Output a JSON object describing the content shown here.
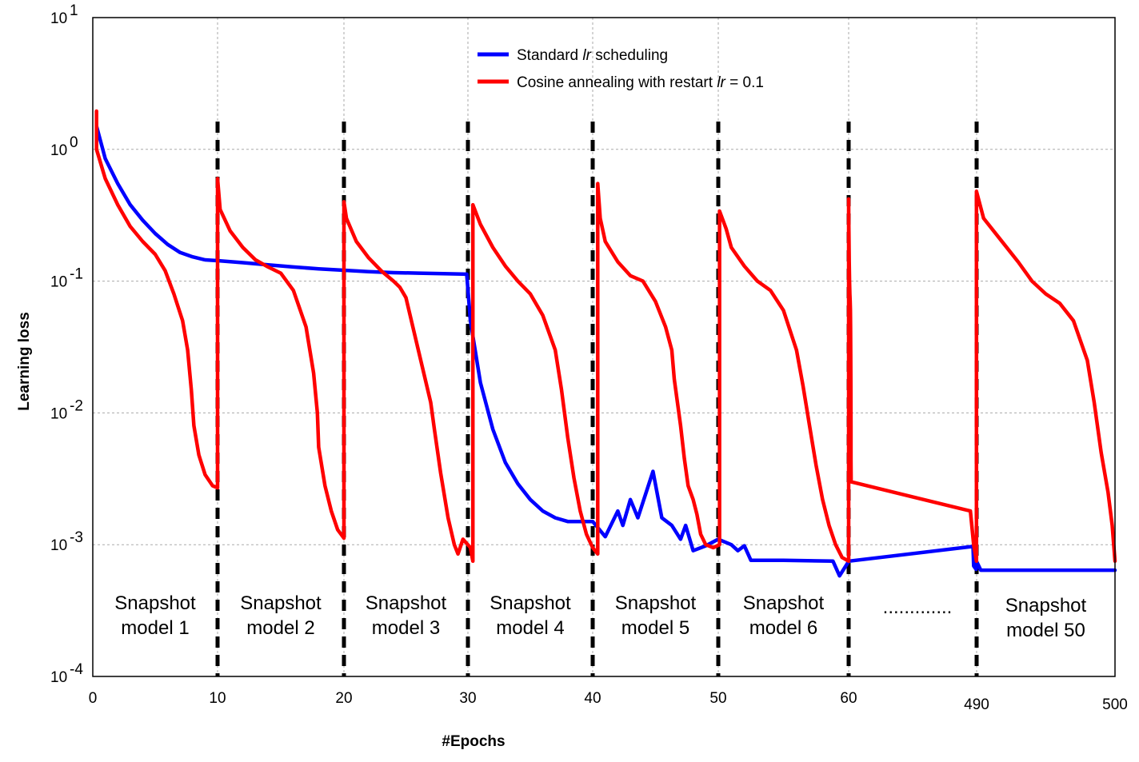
{
  "chart_data": {
    "type": "line",
    "xlabel": "#Epochs",
    "ylabel": "Learning loss",
    "yscale": "log",
    "ylim": [
      0.0001,
      10
    ],
    "xlim": [
      0,
      500
    ],
    "grid": true,
    "legend_placement": "top-center",
    "x_ticks": [
      {
        "value": 0,
        "label": "0"
      },
      {
        "value": 10,
        "label": "10"
      },
      {
        "value": 20,
        "label": "20"
      },
      {
        "value": 30,
        "label": "30"
      },
      {
        "value": 40,
        "label": "40"
      },
      {
        "value": 50,
        "label": "50"
      },
      {
        "value": 60,
        "label": "60"
      },
      {
        "value": 490,
        "label": "490"
      },
      {
        "value": 500,
        "label": "500"
      }
    ],
    "y_ticks": [
      {
        "value": 10,
        "base": "10",
        "exp": "1"
      },
      {
        "value": 1,
        "base": "10",
        "exp": "0"
      },
      {
        "value": 0.1,
        "base": "10",
        "exp": "-1"
      },
      {
        "value": 0.01,
        "base": "10",
        "exp": "-2"
      },
      {
        "value": 0.001,
        "base": "10",
        "exp": "-3"
      },
      {
        "value": 0.0001,
        "base": "10",
        "exp": "-4"
      }
    ],
    "restart_epochs": [
      10,
      20,
      30,
      40,
      50,
      60,
      490
    ],
    "snapshots": [
      {
        "line1": "Snapshot",
        "line2": "model 1",
        "x_center": 5
      },
      {
        "line1": "Snapshot",
        "line2": "model 2",
        "x_center": 15
      },
      {
        "line1": "Snapshot",
        "line2": "model 3",
        "x_center": 25
      },
      {
        "line1": "Snapshot",
        "line2": "model 4",
        "x_center": 35
      },
      {
        "line1": "Snapshot",
        "line2": "model 5",
        "x_center": 45
      },
      {
        "line1": "Snapshot",
        "line2": "model 6",
        "x_center": 55
      },
      {
        "line1": "Snapshot",
        "line2": "model 50",
        "x_center": 495
      }
    ],
    "ellipsis": {
      "text": ".............",
      "x_center": 65
    },
    "series": [
      {
        "name": "Standard lr scheduling",
        "legend_prefix": "Standard ",
        "legend_italic": "lr",
        "legend_suffix": " scheduling",
        "color": "#0000ff",
        "points": [
          [
            0.3,
            1.5
          ],
          [
            1,
            0.85
          ],
          [
            2,
            0.55
          ],
          [
            3,
            0.38
          ],
          [
            4,
            0.29
          ],
          [
            5,
            0.23
          ],
          [
            6,
            0.19
          ],
          [
            7,
            0.165
          ],
          [
            8,
            0.153
          ],
          [
            9,
            0.145
          ],
          [
            10,
            0.143
          ],
          [
            12,
            0.138
          ],
          [
            14,
            0.133
          ],
          [
            16,
            0.128
          ],
          [
            18,
            0.124
          ],
          [
            20,
            0.121
          ],
          [
            22,
            0.118
          ],
          [
            24,
            0.116
          ],
          [
            26,
            0.115
          ],
          [
            28,
            0.114
          ],
          [
            29.9,
            0.113
          ],
          [
            30.2,
            0.05
          ],
          [
            31,
            0.017
          ],
          [
            32,
            0.0075
          ],
          [
            33,
            0.0042
          ],
          [
            34,
            0.0029
          ],
          [
            35,
            0.0022
          ],
          [
            36,
            0.0018
          ],
          [
            37,
            0.0016
          ],
          [
            38,
            0.0015
          ],
          [
            39,
            0.0015
          ],
          [
            40,
            0.0015
          ],
          [
            41,
            0.00115
          ],
          [
            42,
            0.0018
          ],
          [
            42.4,
            0.0014
          ],
          [
            43,
            0.0022
          ],
          [
            43.6,
            0.0016
          ],
          [
            44.8,
            0.0036
          ],
          [
            45.5,
            0.0016
          ],
          [
            46.3,
            0.0014
          ],
          [
            47,
            0.0011
          ],
          [
            47.4,
            0.0014
          ],
          [
            48,
            0.0009
          ],
          [
            49,
            0.00098
          ],
          [
            50,
            0.0011
          ],
          [
            51,
            0.001
          ],
          [
            51.5,
            0.0009
          ],
          [
            52,
            0.00098
          ],
          [
            52.5,
            0.00076
          ],
          [
            55,
            0.00076
          ],
          [
            58.8,
            0.00075
          ],
          [
            59.3,
            0.00058
          ],
          [
            60.5,
            0.00075
          ],
          [
            478,
            0.00097
          ],
          [
            480,
            0.00069
          ],
          [
            484,
            0.00067
          ],
          [
            488,
            0.00065
          ],
          [
            489.5,
            0.00075
          ],
          [
            490.3,
            0.00064
          ],
          [
            500,
            0.00064
          ]
        ]
      },
      {
        "name": "Cosine annealing with restart lr = 0.1",
        "legend_prefix": "Cosine annealing with restart ",
        "legend_italic": "lr",
        "legend_suffix": " = 0.1",
        "color": "#ff0000",
        "points": [
          [
            0.3,
            1.95
          ],
          [
            0.3,
            1.0
          ],
          [
            1,
            0.6
          ],
          [
            2,
            0.38
          ],
          [
            3,
            0.26
          ],
          [
            4,
            0.2
          ],
          [
            5,
            0.16
          ],
          [
            5.8,
            0.12
          ],
          [
            6.5,
            0.08
          ],
          [
            7.2,
            0.05
          ],
          [
            7.6,
            0.03
          ],
          [
            7.9,
            0.015
          ],
          [
            8.1,
            0.008
          ],
          [
            8.5,
            0.0048
          ],
          [
            9,
            0.0034
          ],
          [
            9.6,
            0.0028
          ],
          [
            10,
            0.0027
          ],
          [
            10,
            0.6
          ],
          [
            10.2,
            0.35
          ],
          [
            11,
            0.24
          ],
          [
            12,
            0.18
          ],
          [
            13,
            0.145
          ],
          [
            14,
            0.128
          ],
          [
            15,
            0.115
          ],
          [
            16,
            0.085
          ],
          [
            17,
            0.045
          ],
          [
            17.6,
            0.02
          ],
          [
            17.9,
            0.01
          ],
          [
            18,
            0.0055
          ],
          [
            18.5,
            0.0028
          ],
          [
            19,
            0.0018
          ],
          [
            19.5,
            0.0013
          ],
          [
            20,
            0.00112
          ],
          [
            20,
            0.4
          ],
          [
            20.2,
            0.3
          ],
          [
            21,
            0.2
          ],
          [
            22,
            0.15
          ],
          [
            23,
            0.12
          ],
          [
            24,
            0.1
          ],
          [
            24.5,
            0.09
          ],
          [
            25,
            0.075
          ],
          [
            26,
            0.03
          ],
          [
            27,
            0.012
          ],
          [
            27.3,
            0.0075
          ],
          [
            27.8,
            0.0035
          ],
          [
            28.4,
            0.0016
          ],
          [
            28.9,
            0.001
          ],
          [
            29.2,
            0.00085
          ],
          [
            29.6,
            0.0011
          ],
          [
            30.2,
            0.00095
          ],
          [
            30.4,
            0.00075
          ],
          [
            30.4,
            0.38
          ],
          [
            31,
            0.27
          ],
          [
            32,
            0.18
          ],
          [
            33,
            0.13
          ],
          [
            34,
            0.1
          ],
          [
            35,
            0.08
          ],
          [
            36,
            0.055
          ],
          [
            37,
            0.03
          ],
          [
            37.5,
            0.015
          ],
          [
            38,
            0.0065
          ],
          [
            38.5,
            0.0032
          ],
          [
            39,
            0.0018
          ],
          [
            39.5,
            0.0012
          ],
          [
            40,
            0.00095
          ],
          [
            40.4,
            0.00085
          ],
          [
            40.4,
            0.55
          ],
          [
            40.6,
            0.3
          ],
          [
            41,
            0.2
          ],
          [
            42,
            0.14
          ],
          [
            43,
            0.11
          ],
          [
            44,
            0.1
          ],
          [
            45,
            0.07
          ],
          [
            45.8,
            0.045
          ],
          [
            46.3,
            0.03
          ],
          [
            46.5,
            0.018
          ],
          [
            47,
            0.008
          ],
          [
            47.3,
            0.0045
          ],
          [
            47.6,
            0.0028
          ],
          [
            48,
            0.0022
          ],
          [
            48.3,
            0.0017
          ],
          [
            48.6,
            0.0012
          ],
          [
            49,
            0.001
          ],
          [
            49.6,
            0.00095
          ],
          [
            50.1,
            0.001
          ],
          [
            50.1,
            0.34
          ],
          [
            50.6,
            0.25
          ],
          [
            51,
            0.18
          ],
          [
            52,
            0.13
          ],
          [
            53,
            0.1
          ],
          [
            54,
            0.085
          ],
          [
            55,
            0.06
          ],
          [
            56,
            0.03
          ],
          [
            56.5,
            0.016
          ],
          [
            57,
            0.008
          ],
          [
            57.5,
            0.004
          ],
          [
            58,
            0.0022
          ],
          [
            58.5,
            0.0014
          ],
          [
            59,
            0.001
          ],
          [
            59.5,
            0.0008
          ],
          [
            60,
            0.00075
          ],
          [
            60,
            0.42
          ],
          [
            60.3,
            0.3
          ],
          [
            61,
            0.21
          ],
          [
            62,
            0.14
          ],
          [
            63,
            0.1
          ],
          [
            64,
            0.08
          ],
          [
            65,
            0.07
          ],
          [
            66,
            0.06
          ],
          [
            66.5,
            0.045
          ],
          [
            67,
            0.028
          ],
          [
            67.5,
            0.015
          ],
          [
            67.9,
            0.008
          ],
          [
            67.8,
            0.0045
          ],
          [
            68.3,
            0.003
          ],
          [
            469,
            0.0018
          ],
          [
            480,
            0.001
          ],
          [
            489.5,
            0.00075
          ],
          [
            489.5,
            0.48
          ],
          [
            490.5,
            0.3
          ],
          [
            492,
            0.19
          ],
          [
            493,
            0.14
          ],
          [
            494,
            0.1
          ],
          [
            495,
            0.08
          ],
          [
            496,
            0.068
          ],
          [
            497,
            0.05
          ],
          [
            498,
            0.025
          ],
          [
            498.5,
            0.012
          ],
          [
            499,
            0.005
          ],
          [
            499.5,
            0.0025
          ],
          [
            499.8,
            0.0014
          ],
          [
            500,
            0.00075
          ]
        ]
      }
    ]
  }
}
